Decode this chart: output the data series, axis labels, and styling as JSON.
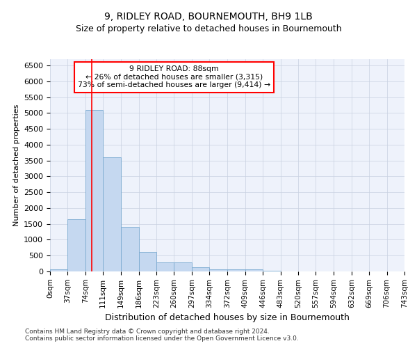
{
  "title": "9, RIDLEY ROAD, BOURNEMOUTH, BH9 1LB",
  "subtitle": "Size of property relative to detached houses in Bournemouth",
  "xlabel": "Distribution of detached houses by size in Bournemouth",
  "ylabel": "Number of detached properties",
  "bin_edges": [
    0,
    37,
    74,
    111,
    149,
    186,
    223,
    260,
    297,
    334,
    372,
    409,
    446,
    483,
    520,
    557,
    594,
    632,
    669,
    706,
    743
  ],
  "bar_heights": [
    75,
    1650,
    5100,
    3600,
    1400,
    620,
    290,
    290,
    135,
    75,
    55,
    70,
    30,
    8,
    3,
    3,
    3,
    3,
    3,
    3
  ],
  "bar_color": "#c5d8f0",
  "bar_edgecolor": "#7aaad0",
  "red_line_x": 88,
  "ylim": [
    0,
    6700
  ],
  "yticks": [
    0,
    500,
    1000,
    1500,
    2000,
    2500,
    3000,
    3500,
    4000,
    4500,
    5000,
    5500,
    6000,
    6500
  ],
  "annotation_title": "9 RIDLEY ROAD: 88sqm",
  "annotation_line1": "← 26% of detached houses are smaller (3,315)",
  "annotation_line2": "73% of semi-detached houses are larger (9,414) →",
  "footer_line1": "Contains HM Land Registry data © Crown copyright and database right 2024.",
  "footer_line2": "Contains public sector information licensed under the Open Government Licence v3.0.",
  "background_color": "#eef2fb",
  "grid_color": "#c8d0e0",
  "title_fontsize": 10,
  "subtitle_fontsize": 9,
  "axis_fontsize": 8,
  "footer_fontsize": 6.5
}
